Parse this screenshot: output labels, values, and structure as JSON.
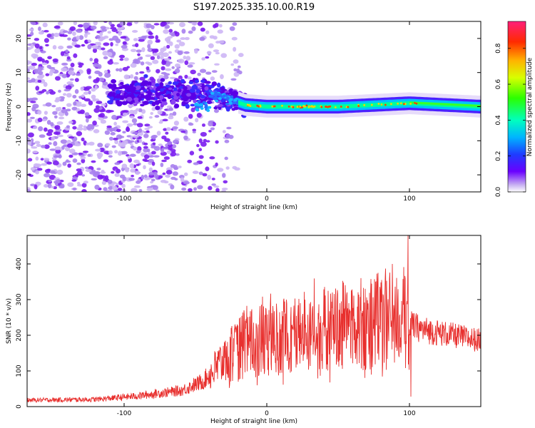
{
  "title": "S197.2025.335.10.00.R19",
  "chart_data": [
    {
      "type": "heatmap",
      "xlabel": "Height of straight line (km)",
      "ylabel": "Frequency (Hz)",
      "xlim": [
        -168,
        150
      ],
      "ylim": [
        -25,
        25
      ],
      "x_ticks": [
        -100,
        0,
        100
      ],
      "y_ticks": [
        -20,
        -10,
        0,
        10,
        20
      ],
      "colorbar": {
        "label": "Normalized spectral amplitude",
        "range": [
          0,
          0.95
        ],
        "ticks": [
          0.0,
          0.2,
          0.4,
          0.6,
          0.8
        ]
      },
      "ridge": {
        "description_points": [
          {
            "x": -40,
            "y": 4
          },
          {
            "x": -15,
            "y": 0.5
          },
          {
            "x": 0,
            "y": 0
          },
          {
            "x": 50,
            "y": 0
          },
          {
            "x": 100,
            "y": 1
          },
          {
            "x": 150,
            "y": 0
          }
        ]
      }
    },
    {
      "type": "line",
      "xlabel": "Height of straight line (km)",
      "ylabel": "SNR (10 * v/v)",
      "xlim": [
        -168,
        150
      ],
      "ylim": [
        0,
        480
      ],
      "x_ticks": [
        -100,
        0,
        100
      ],
      "y_ticks": [
        0,
        100,
        200,
        300,
        400
      ],
      "color": "#e8302e",
      "envelope": [
        {
          "x": -168,
          "y": 18
        },
        {
          "x": -120,
          "y": 20
        },
        {
          "x": -90,
          "y": 30
        },
        {
          "x": -60,
          "y": 45
        },
        {
          "x": -45,
          "y": 70
        },
        {
          "x": -30,
          "y": 130
        },
        {
          "x": -15,
          "y": 175
        },
        {
          "x": 0,
          "y": 185
        },
        {
          "x": 30,
          "y": 210
        },
        {
          "x": 60,
          "y": 230
        },
        {
          "x": 90,
          "y": 250
        },
        {
          "x": 100,
          "y": 230
        },
        {
          "x": 110,
          "y": 215
        },
        {
          "x": 150,
          "y": 185
        }
      ],
      "peaks": [
        {
          "x": -16,
          "y": 270
        },
        {
          "x": 78,
          "y": 375
        },
        {
          "x": 88,
          "y": 400
        },
        {
          "x": 99,
          "y": 480
        },
        {
          "x": 101,
          "y": 28
        }
      ]
    }
  ]
}
